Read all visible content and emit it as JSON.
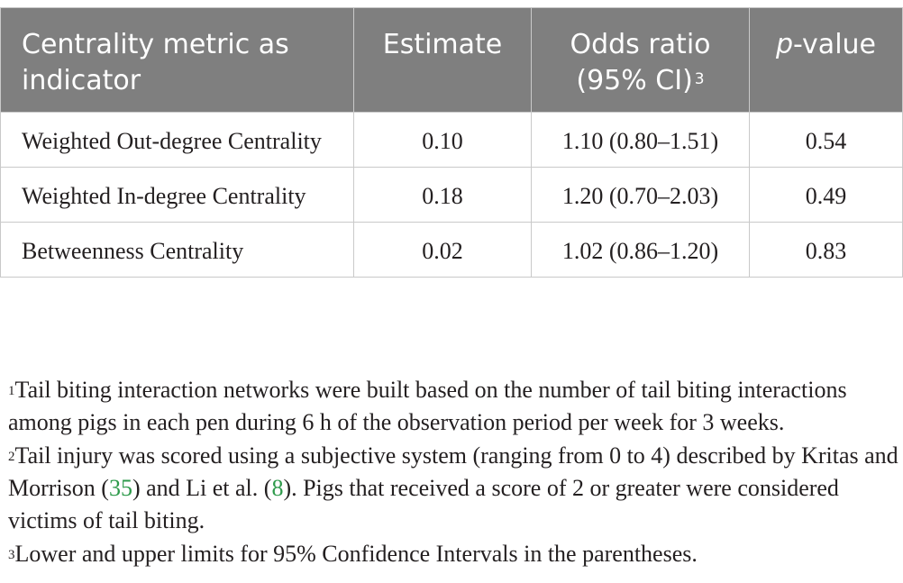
{
  "table": {
    "headers": {
      "metric": "Centrality metric as indicator",
      "estimate": "Estimate",
      "odds_ratio": "Odds ratio (95% CI)",
      "odds_ratio_sup": "3",
      "p_value_italic": "p",
      "p_value_rest": "-value"
    },
    "rows": [
      {
        "metric": "Weighted Out-degree Centrality",
        "estimate": "0.10",
        "odds_ratio": "1.10 (0.80–1.51)",
        "p_value": "0.54"
      },
      {
        "metric": "Weighted In-degree Centrality",
        "estimate": "0.18",
        "odds_ratio": "1.20 (0.70–2.03)",
        "p_value": "0.49"
      },
      {
        "metric": "Betweenness Centrality",
        "estimate": "0.02",
        "odds_ratio": "1.02 (0.86–1.20)",
        "p_value": "0.83"
      }
    ]
  },
  "footnotes": [
    {
      "mark": "1",
      "text": "Tail biting interaction networks were built based on the number of tail biting interactions among pigs in each pen during 6 h of the observation period per week for 3 weeks."
    },
    {
      "mark": "2",
      "text_a": "Tail injury was scored using a subjective system (ranging from 0 to 4) described by Kritas and Morrison (",
      "ref_a": "35",
      "text_b": ") and Li et al. (",
      "ref_b": "8",
      "text_c": "). Pigs that received a score of 2 or greater were considered victims of tail biting."
    },
    {
      "mark": "3",
      "text": "Lower and upper limits for 95% Confidence Intervals in the parentheses."
    }
  ],
  "colors": {
    "header_bg": "#7f7f7f",
    "header_text": "#ffffff",
    "body_text": "#231f20",
    "reference_link": "#2e9a4b",
    "border": "#c9c9c9"
  }
}
